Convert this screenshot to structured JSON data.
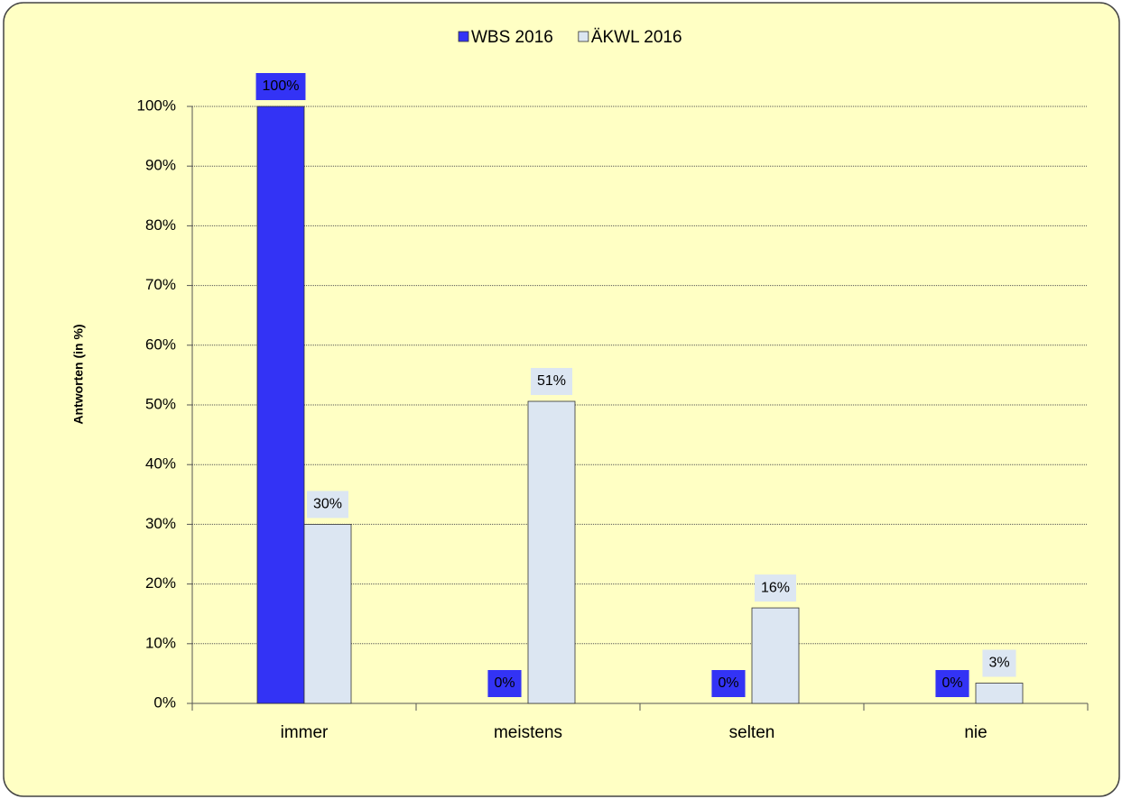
{
  "chart_data": {
    "type": "bar",
    "categories": [
      "immer",
      "meistens",
      "selten",
      "nie"
    ],
    "y_label": "Antworten (in %)",
    "ylim": [
      0,
      100
    ],
    "yticks": [
      {
        "value": 0,
        "label": "0%"
      },
      {
        "value": 10,
        "label": "10%"
      },
      {
        "value": 20,
        "label": "20%"
      },
      {
        "value": 30,
        "label": "30%"
      },
      {
        "value": 40,
        "label": "40%"
      },
      {
        "value": 50,
        "label": "50%"
      },
      {
        "value": 60,
        "label": "60%"
      },
      {
        "value": 70,
        "label": "70%"
      },
      {
        "value": 80,
        "label": "80%"
      },
      {
        "value": 90,
        "label": "90%"
      },
      {
        "value": 100,
        "label": "100%"
      }
    ],
    "grid": true,
    "legend": "top",
    "series": [
      {
        "name": "WBS 2016",
        "color": "#3333f5",
        "values": [
          100,
          0,
          0,
          0
        ],
        "value_labels": [
          "100%",
          "0%",
          "0%",
          "0%"
        ]
      },
      {
        "name": "ÄKWL 2016",
        "color": "#dce6f2",
        "values": [
          30,
          50.6,
          16,
          3.4
        ],
        "value_labels": [
          "30%",
          "51%",
          "16%",
          "3%"
        ]
      }
    ]
  }
}
